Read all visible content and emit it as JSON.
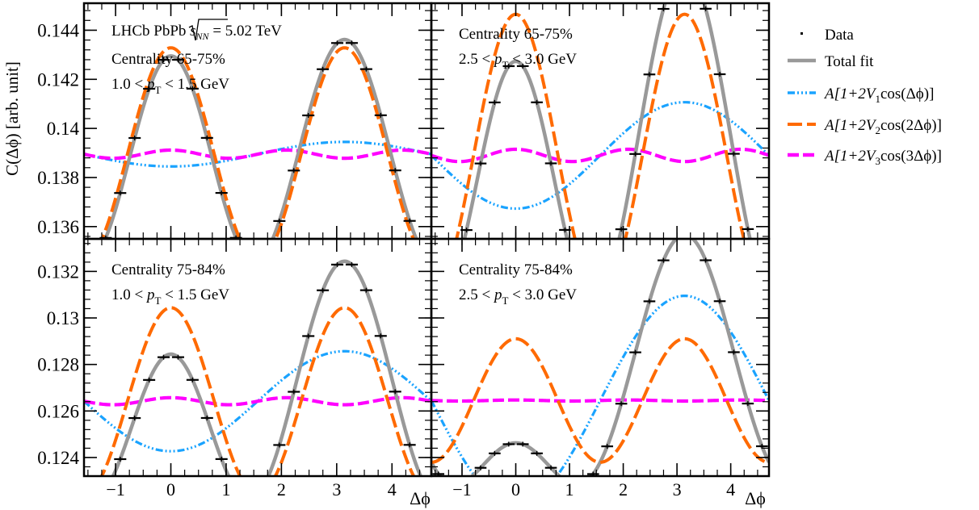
{
  "figure": {
    "ylabel": "C(Δϕ) [arb. unit]",
    "xlabel": "Δϕ"
  },
  "colors": {
    "data": "#000000",
    "total": "#999999",
    "v1": "#1aa3ff",
    "v2": "#ff6a00",
    "v3": "#ff00ff"
  },
  "legend": {
    "data": "Data",
    "total": "Total fit",
    "v1": {
      "pre": "A[1+2V",
      "sub": "1",
      "post": "cos(Δϕ)]"
    },
    "v2": {
      "pre": "A[1+2V",
      "sub": "2",
      "post": "cos(2Δϕ)]"
    },
    "v3": {
      "pre": "A[1+2V",
      "sub": "3",
      "post": "cos(3Δϕ)]"
    }
  },
  "experiment": {
    "pre": "LHCb PbPb",
    "sqrt_sub": "NN",
    "energy": "= 5.02 TeV"
  },
  "chart_data": [
    {
      "type": "line",
      "panel": "top-left",
      "centrality": "Centrality 65-75%",
      "pt_lo": "1.0 <",
      "pt_hi": "< 1.5 GeV",
      "show_experiment": true,
      "xlim": [
        -1.571,
        4.712
      ],
      "ylim": [
        0.1355,
        0.1451
      ],
      "yticks": [
        0.136,
        0.138,
        0.14,
        0.142,
        0.144
      ],
      "ytick_labels": [
        "0.136",
        "0.138",
        "0.14",
        "0.142",
        "0.144"
      ],
      "xticks": [
        -1,
        0,
        1,
        2,
        3,
        4
      ],
      "xtick_labels": [],
      "model": {
        "A": 0.13895,
        "V1": -0.0018,
        "V2": 0.0156,
        "V3": 0.0006
      },
      "series": [
        {
          "name": "Data",
          "points": "24 points between x = -1.44 and x = 4.58, following the total fit"
        }
      ]
    },
    {
      "type": "line",
      "panel": "top-right",
      "centrality": "Centrality 65-75%",
      "pt_lo": "2.5 <",
      "pt_hi": "< 3.0 GeV",
      "show_experiment": false,
      "xlim": [
        -1.571,
        4.712
      ],
      "ylim": [
        0.1355,
        0.1451
      ],
      "yticks": [
        0.136,
        0.138,
        0.14,
        0.142,
        0.144
      ],
      "ytick_labels": [],
      "xticks": [
        -1,
        0,
        1,
        2,
        3,
        4
      ],
      "xtick_labels": [],
      "model": {
        "A": 0.1389,
        "V1": -0.0078,
        "V2": 0.0207,
        "V3": 0.0009
      }
    },
    {
      "type": "line",
      "panel": "bottom-left",
      "centrality": "Centrality 75-84%",
      "pt_lo": "1.0 <",
      "pt_hi": "< 1.5 GeV",
      "show_experiment": false,
      "xlim": [
        -1.571,
        4.712
      ],
      "ylim": [
        0.1232,
        0.1334
      ],
      "yticks": [
        0.124,
        0.126,
        0.128,
        0.13,
        0.132
      ],
      "ytick_labels": [
        "0.124",
        "0.126",
        "0.128",
        "0.13",
        "0.132"
      ],
      "xticks": [
        -1,
        0,
        1,
        2,
        3,
        4
      ],
      "xtick_labels": [
        "−1",
        "0",
        "1",
        "2",
        "3",
        "4"
      ],
      "model": {
        "A": 0.12642,
        "V1": -0.0085,
        "V2": 0.0159,
        "V3": 0.0006
      }
    },
    {
      "type": "line",
      "panel": "bottom-right",
      "centrality": "Centrality 75-84%",
      "pt_lo": "2.5 <",
      "pt_hi": "< 3.0 GeV",
      "show_experiment": false,
      "xlim": [
        -1.571,
        4.712
      ],
      "ylim": [
        0.1232,
        0.1334
      ],
      "yticks": [
        0.124,
        0.126,
        0.128,
        0.13,
        0.132
      ],
      "ytick_labels": [],
      "xticks": [
        -1,
        0,
        1,
        2,
        3,
        4
      ],
      "xtick_labels": [
        "−1",
        "0",
        "1",
        "2",
        "3",
        "4"
      ],
      "model": {
        "A": 0.12645,
        "V1": -0.0178,
        "V2": 0.0105,
        "V3": 9e-05
      }
    }
  ]
}
